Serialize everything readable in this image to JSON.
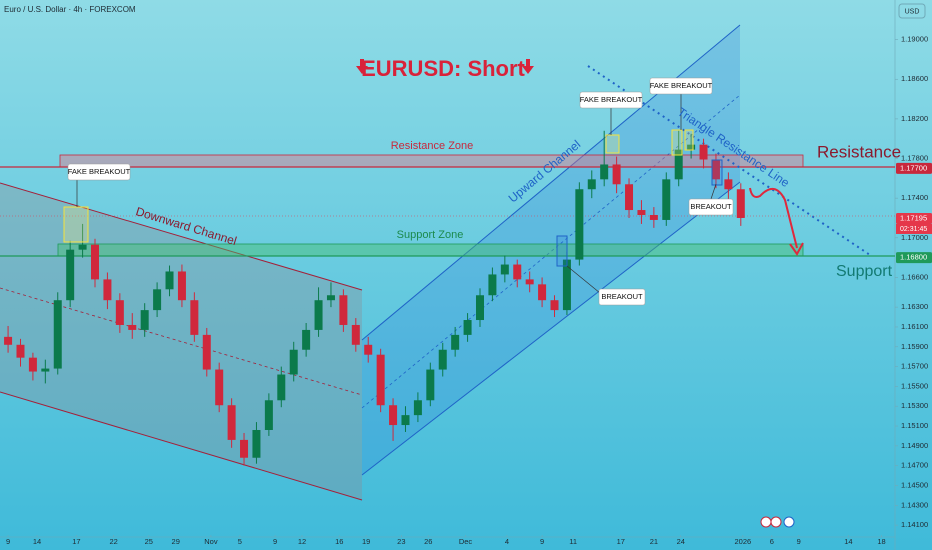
{
  "header": {
    "symbol": "Euro / U.S. Dollar · 4h · FOREXCOM",
    "currency": "USD"
  },
  "chart_data": {
    "type": "candlestick",
    "title": "EURUSD: Short",
    "x": [
      0,
      6,
      12,
      18,
      24,
      30,
      36,
      42,
      48,
      54,
      60,
      66,
      72,
      78,
      84,
      90,
      96,
      102,
      108,
      114,
      120,
      126,
      132,
      138,
      144,
      150,
      156,
      162,
      168,
      174,
      180,
      186,
      192,
      198,
      204,
      210,
      216,
      222,
      228,
      234,
      240,
      246,
      252,
      258,
      264,
      270,
      276,
      282,
      288,
      294,
      300,
      306,
      312,
      318,
      324,
      330,
      336,
      342,
      348,
      354
    ],
    "open": [
      1.16,
      1.1592,
      1.1579,
      1.1565,
      1.1568,
      1.1637,
      1.1688,
      1.1693,
      1.1658,
      1.1637,
      1.1612,
      1.1607,
      1.1627,
      1.1648,
      1.1666,
      1.1637,
      1.1602,
      1.1567,
      1.1531,
      1.1496,
      1.1478,
      1.1506,
      1.1536,
      1.1562,
      1.1587,
      1.1607,
      1.1637,
      1.1642,
      1.1612,
      1.1592,
      1.1582,
      1.1531,
      1.1511,
      1.1521,
      1.1536,
      1.1567,
      1.1587,
      1.1602,
      1.1617,
      1.1642,
      1.1663,
      1.1673,
      1.1658,
      1.1653,
      1.1637,
      1.1627,
      1.1678,
      1.1749,
      1.1759,
      1.1774,
      1.1754,
      1.1728,
      1.1723,
      1.1718,
      1.1759,
      1.1789,
      1.1794,
      1.1779,
      1.1759,
      1.1749
    ],
    "high": [
      1.1611,
      1.1598,
      1.1584,
      1.1577,
      1.1645,
      1.1697,
      1.1714,
      1.1699,
      1.1665,
      1.1644,
      1.1624,
      1.1634,
      1.1655,
      1.1672,
      1.1673,
      1.1645,
      1.1609,
      1.1574,
      1.1538,
      1.1503,
      1.1514,
      1.1543,
      1.157,
      1.1595,
      1.1614,
      1.165,
      1.1655,
      1.1648,
      1.1619,
      1.16,
      1.1588,
      1.1538,
      1.153,
      1.1544,
      1.1574,
      1.1594,
      1.161,
      1.1624,
      1.1649,
      1.167,
      1.1682,
      1.1678,
      1.1666,
      1.166,
      1.1642,
      1.1686,
      1.1756,
      1.1768,
      1.1808,
      1.1782,
      1.176,
      1.1738,
      1.1731,
      1.1766,
      1.1808,
      1.1805,
      1.18,
      1.1785,
      1.1766,
      1.1755
    ],
    "low": [
      1.1584,
      1.157,
      1.1556,
      1.1553,
      1.1562,
      1.163,
      1.168,
      1.165,
      1.1628,
      1.1604,
      1.1598,
      1.16,
      1.162,
      1.1641,
      1.163,
      1.1595,
      1.156,
      1.1524,
      1.1488,
      1.147,
      1.1472,
      1.15,
      1.1529,
      1.1555,
      1.158,
      1.16,
      1.163,
      1.1605,
      1.1585,
      1.1574,
      1.1524,
      1.1495,
      1.1504,
      1.1514,
      1.153,
      1.156,
      1.158,
      1.1595,
      1.161,
      1.1636,
      1.1655,
      1.165,
      1.1645,
      1.163,
      1.162,
      1.1622,
      1.1672,
      1.174,
      1.1752,
      1.1745,
      1.172,
      1.1714,
      1.171,
      1.1712,
      1.1752,
      1.178,
      1.177,
      1.175,
      1.1738,
      1.1712
    ],
    "close": [
      1.1592,
      1.1579,
      1.1565,
      1.1568,
      1.1637,
      1.1688,
      1.1693,
      1.1658,
      1.1637,
      1.1612,
      1.1607,
      1.1627,
      1.1648,
      1.1666,
      1.1637,
      1.1602,
      1.1567,
      1.1531,
      1.1496,
      1.1478,
      1.1506,
      1.1536,
      1.1562,
      1.1587,
      1.1607,
      1.1637,
      1.1642,
      1.1612,
      1.1592,
      1.1582,
      1.1531,
      1.1511,
      1.1521,
      1.1536,
      1.1567,
      1.1587,
      1.1602,
      1.1617,
      1.1642,
      1.1663,
      1.1673,
      1.1658,
      1.1653,
      1.1637,
      1.1627,
      1.1678,
      1.1749,
      1.1759,
      1.1774,
      1.1754,
      1.1728,
      1.1723,
      1.1718,
      1.1759,
      1.1789,
      1.1794,
      1.1779,
      1.1759,
      1.1749,
      1.172
    ],
    "up_color": "#0b7a4b",
    "down_color": "#d0283c",
    "xlim": [
      -3.9,
      428.5
    ],
    "ylim": [
      1.1398,
      1.194
    ],
    "grid": false,
    "xticks": [
      {
        "value": 0,
        "label": "9"
      },
      {
        "value": 14,
        "label": "14"
      },
      {
        "value": 33,
        "label": "17"
      },
      {
        "value": 51,
        "label": "22"
      },
      {
        "value": 68,
        "label": "25"
      },
      {
        "value": 81,
        "label": "29"
      },
      {
        "value": 98,
        "label": "Nov"
      },
      {
        "value": 112,
        "label": "5"
      },
      {
        "value": 129,
        "label": "9"
      },
      {
        "value": 142,
        "label": "12"
      },
      {
        "value": 160,
        "label": "16"
      },
      {
        "value": 173,
        "label": "19"
      },
      {
        "value": 190,
        "label": "23"
      },
      {
        "value": 203,
        "label": "26"
      },
      {
        "value": 221,
        "label": "Dec"
      },
      {
        "value": 241,
        "label": "4"
      },
      {
        "value": 258,
        "label": "9"
      },
      {
        "value": 273,
        "label": "11"
      },
      {
        "value": 296,
        "label": "17"
      },
      {
        "value": 312,
        "label": "21"
      },
      {
        "value": 325,
        "label": "24"
      },
      {
        "value": 355,
        "label": "2026"
      },
      {
        "value": 369,
        "label": "6"
      },
      {
        "value": 382,
        "label": "9"
      },
      {
        "value": 406,
        "label": "14"
      },
      {
        "value": 422,
        "label": "18"
      }
    ],
    "yticks": [
      {
        "value": 1.19,
        "label": "1.19000"
      },
      {
        "value": 1.186,
        "label": "1.18600"
      },
      {
        "value": 1.182,
        "label": "1.18200"
      },
      {
        "value": 1.178,
        "label": "1.17800"
      },
      {
        "value": 1.174,
        "label": "1.17400"
      },
      {
        "value": 1.17,
        "label": "1.17000"
      },
      {
        "value": 1.166,
        "label": "1.16600"
      },
      {
        "value": 1.163,
        "label": "1.16300"
      },
      {
        "value": 1.161,
        "label": "1.16100"
      },
      {
        "value": 1.159,
        "label": "1.15900"
      },
      {
        "value": 1.157,
        "label": "1.15700"
      },
      {
        "value": 1.155,
        "label": "1.15500"
      },
      {
        "value": 1.153,
        "label": "1.15300"
      },
      {
        "value": 1.151,
        "label": "1.15100"
      },
      {
        "value": 1.149,
        "label": "1.14900"
      },
      {
        "value": 1.147,
        "label": "1.14700"
      },
      {
        "value": 1.145,
        "label": "1.14500"
      },
      {
        "value": 1.143,
        "label": "1.14300"
      },
      {
        "value": 1.141,
        "label": "1.14100"
      }
    ],
    "price_labels": [
      {
        "value": 1.177,
        "label": "1.17700",
        "color": "#c8283c"
      },
      {
        "value": 1.17195,
        "label": "1.17195",
        "color": "#e5374a"
      },
      {
        "value": 1.168,
        "label": "1.16800",
        "color": "#1f9a5a"
      }
    ],
    "countdown": "02:31:45",
    "annotations": {
      "resistance_zone": "Resistance Zone",
      "support_zone": "Support Zone",
      "downward_channel": "Downward Channel",
      "upward_channel": "Upward Channel",
      "triangle_line": "Triangle Resistance Line",
      "resistance": "Resistance",
      "support": "Support",
      "fake_breakouts": [
        "FAKE BREAKOUT",
        "FAKE BREAKOUT",
        "FAKE BREAKOUT"
      ],
      "breakouts": [
        "BREAKOUT",
        "BREAKOUT"
      ]
    }
  }
}
